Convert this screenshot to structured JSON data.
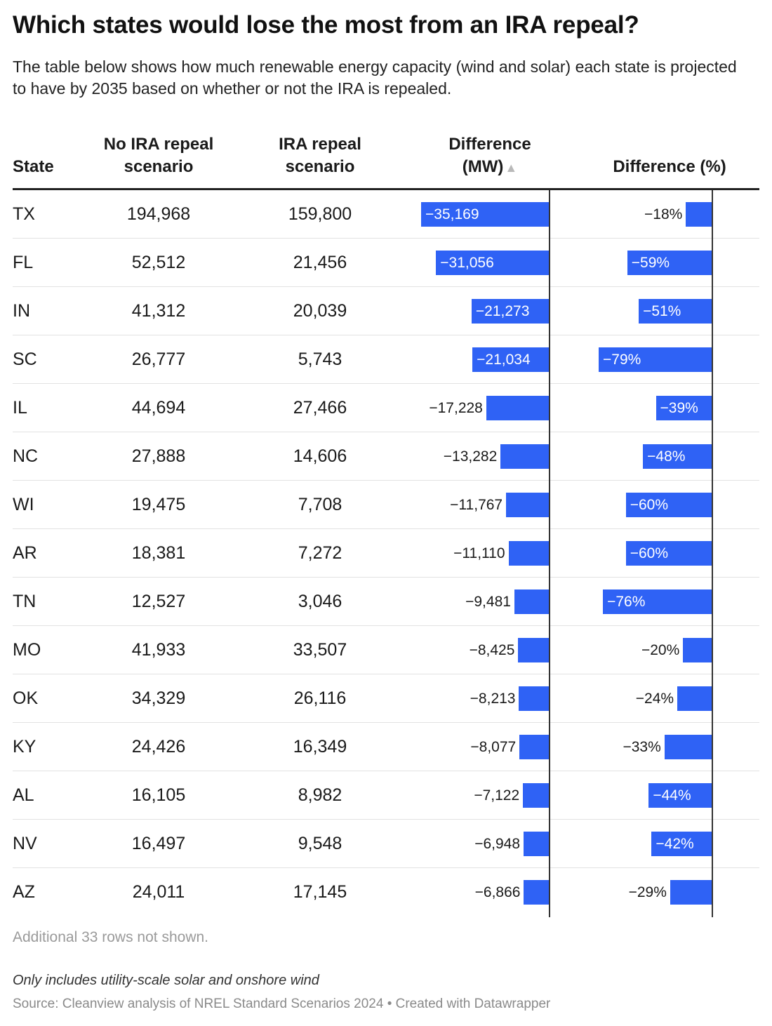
{
  "header": {
    "title": "Which states would lose the most from an IRA repeal?",
    "subtitle": "The table below shows how much renewable energy capacity (wind and solar) each state is projected to have by 2035 based on whether or not the IRA is repealed."
  },
  "columns": {
    "state": "State",
    "no_repeal_line1": "No IRA repeal",
    "no_repeal_line2": "scenario",
    "repeal_line1": "IRA repeal",
    "repeal_line2": "scenario",
    "diff_mw_line1": "Difference",
    "diff_mw_line2": "(MW)",
    "diff_pct": "Difference (%)",
    "sort_icon": "▲"
  },
  "accent_color": "#2f62f5",
  "chart_data": {
    "type": "table",
    "rows": [
      {
        "state": "TX",
        "no_repeal": "194,968",
        "repeal": "159,800",
        "diff_mw": "−35,169",
        "diff_mw_value": -35169,
        "diff_pct": "−18%",
        "diff_pct_value": -18
      },
      {
        "state": "FL",
        "no_repeal": "52,512",
        "repeal": "21,456",
        "diff_mw": "−31,056",
        "diff_mw_value": -31056,
        "diff_pct": "−59%",
        "diff_pct_value": -59
      },
      {
        "state": "IN",
        "no_repeal": "41,312",
        "repeal": "20,039",
        "diff_mw": "−21,273",
        "diff_mw_value": -21273,
        "diff_pct": "−51%",
        "diff_pct_value": -51
      },
      {
        "state": "SC",
        "no_repeal": "26,777",
        "repeal": "5,743",
        "diff_mw": "−21,034",
        "diff_mw_value": -21034,
        "diff_pct": "−79%",
        "diff_pct_value": -79
      },
      {
        "state": "IL",
        "no_repeal": "44,694",
        "repeal": "27,466",
        "diff_mw": "−17,228",
        "diff_mw_value": -17228,
        "diff_pct": "−39%",
        "diff_pct_value": -39
      },
      {
        "state": "NC",
        "no_repeal": "27,888",
        "repeal": "14,606",
        "diff_mw": "−13,282",
        "diff_mw_value": -13282,
        "diff_pct": "−48%",
        "diff_pct_value": -48
      },
      {
        "state": "WI",
        "no_repeal": "19,475",
        "repeal": "7,708",
        "diff_mw": "−11,767",
        "diff_mw_value": -11767,
        "diff_pct": "−60%",
        "diff_pct_value": -60
      },
      {
        "state": "AR",
        "no_repeal": "18,381",
        "repeal": "7,272",
        "diff_mw": "−11,110",
        "diff_mw_value": -11110,
        "diff_pct": "−60%",
        "diff_pct_value": -60
      },
      {
        "state": "TN",
        "no_repeal": "12,527",
        "repeal": "3,046",
        "diff_mw": "−9,481",
        "diff_mw_value": -9481,
        "diff_pct": "−76%",
        "diff_pct_value": -76
      },
      {
        "state": "MO",
        "no_repeal": "41,933",
        "repeal": "33,507",
        "diff_mw": "−8,425",
        "diff_mw_value": -8425,
        "diff_pct": "−20%",
        "diff_pct_value": -20
      },
      {
        "state": "OK",
        "no_repeal": "34,329",
        "repeal": "26,116",
        "diff_mw": "−8,213",
        "diff_mw_value": -8213,
        "diff_pct": "−24%",
        "diff_pct_value": -24
      },
      {
        "state": "KY",
        "no_repeal": "24,426",
        "repeal": "16,349",
        "diff_mw": "−8,077",
        "diff_mw_value": -8077,
        "diff_pct": "−33%",
        "diff_pct_value": -33
      },
      {
        "state": "AL",
        "no_repeal": "16,105",
        "repeal": "8,982",
        "diff_mw": "−7,122",
        "diff_mw_value": -7122,
        "diff_pct": "−44%",
        "diff_pct_value": -44
      },
      {
        "state": "NV",
        "no_repeal": "16,497",
        "repeal": "9,548",
        "diff_mw": "−6,948",
        "diff_mw_value": -6948,
        "diff_pct": "−42%",
        "diff_pct_value": -42
      },
      {
        "state": "AZ",
        "no_repeal": "24,011",
        "repeal": "17,145",
        "diff_mw": "−6,866",
        "diff_mw_value": -6866,
        "diff_pct": "−29%",
        "diff_pct_value": -29
      }
    ]
  },
  "footer": {
    "rows_note": "Additional 33 rows not shown.",
    "note": "Only includes utility-scale solar and onshore wind",
    "source": "Source: Cleanview analysis of NREL Standard Scenarios 2024 • Created with Datawrapper"
  }
}
